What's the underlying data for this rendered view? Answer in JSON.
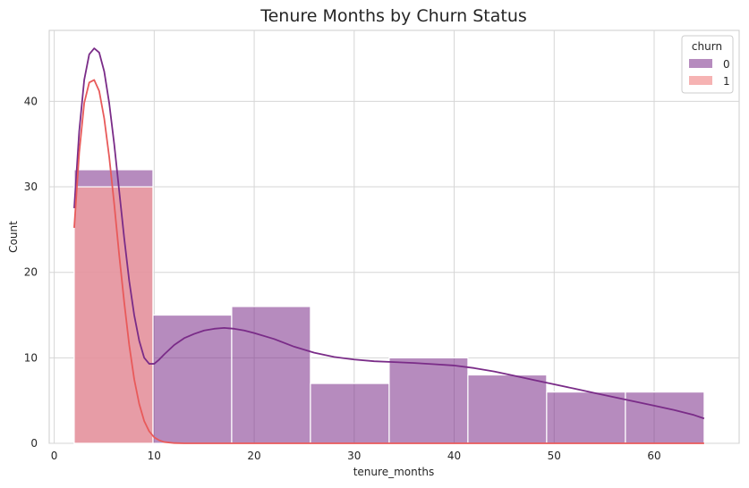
{
  "chart_data": {
    "type": "histogram",
    "title": "Tenure Months by Churn Status",
    "xlabel": "tenure_months",
    "ylabel": "Count",
    "xlim": [
      -0.5,
      68.5
    ],
    "ylim": [
      0,
      48.3
    ],
    "xticks": [
      0,
      10,
      20,
      30,
      40,
      50,
      60
    ],
    "yticks": [
      0,
      10,
      20,
      30,
      40
    ],
    "grid": true,
    "legend": {
      "title": "churn",
      "placement": "top-right"
    },
    "bin_edges": [
      2,
      9.875,
      17.75,
      25.625,
      33.5,
      41.375,
      49.25,
      57.125,
      65
    ],
    "series": [
      {
        "name": "0",
        "color": "#7a2c88",
        "values": [
          32,
          15,
          16,
          7,
          10,
          8,
          6,
          6
        ],
        "kde": {
          "x": [
            2,
            2.5,
            3,
            3.5,
            4,
            4.5,
            5,
            5.5,
            6,
            6.5,
            7,
            7.5,
            8,
            8.5,
            9,
            9.5,
            10,
            10.5,
            11,
            12,
            13,
            14,
            15,
            16,
            17,
            18,
            19,
            20,
            22,
            24,
            26,
            28,
            30,
            32,
            34,
            36,
            38,
            40,
            42,
            44,
            46,
            48,
            50,
            52,
            54,
            56,
            58,
            60,
            62,
            64,
            65
          ],
          "y": [
            27.5,
            36.5,
            42.5,
            45.5,
            46.2,
            45.7,
            43.5,
            39.8,
            35.0,
            29.5,
            24.0,
            19.0,
            15.0,
            12.0,
            10.0,
            9.3,
            9.3,
            9.8,
            10.4,
            11.5,
            12.3,
            12.8,
            13.2,
            13.4,
            13.5,
            13.4,
            13.2,
            12.9,
            12.2,
            11.3,
            10.6,
            10.1,
            9.8,
            9.6,
            9.5,
            9.4,
            9.25,
            9.1,
            8.8,
            8.4,
            7.9,
            7.4,
            6.9,
            6.4,
            5.9,
            5.4,
            4.9,
            4.4,
            3.9,
            3.3,
            2.9
          ]
        }
      },
      {
        "name": "1",
        "color": "#f4a0a0",
        "line_color": "#e85a5a",
        "values": [
          30,
          0,
          0,
          0,
          0,
          0,
          0,
          0
        ],
        "kde": {
          "x": [
            2,
            2.5,
            3,
            3.5,
            4,
            4.5,
            5,
            5.5,
            6,
            6.5,
            7,
            7.5,
            8,
            8.5,
            9,
            9.5,
            10,
            10.5,
            11,
            12,
            13,
            15,
            20,
            30,
            40,
            50,
            60,
            65
          ],
          "y": [
            25.2,
            34.0,
            39.8,
            42.2,
            42.5,
            41.2,
            38.0,
            33.5,
            28.0,
            22.0,
            16.5,
            11.5,
            7.5,
            4.6,
            2.6,
            1.4,
            0.7,
            0.35,
            0.15,
            0.03,
            0.0,
            0,
            0,
            0,
            0,
            0,
            0,
            0
          ]
        }
      }
    ]
  }
}
